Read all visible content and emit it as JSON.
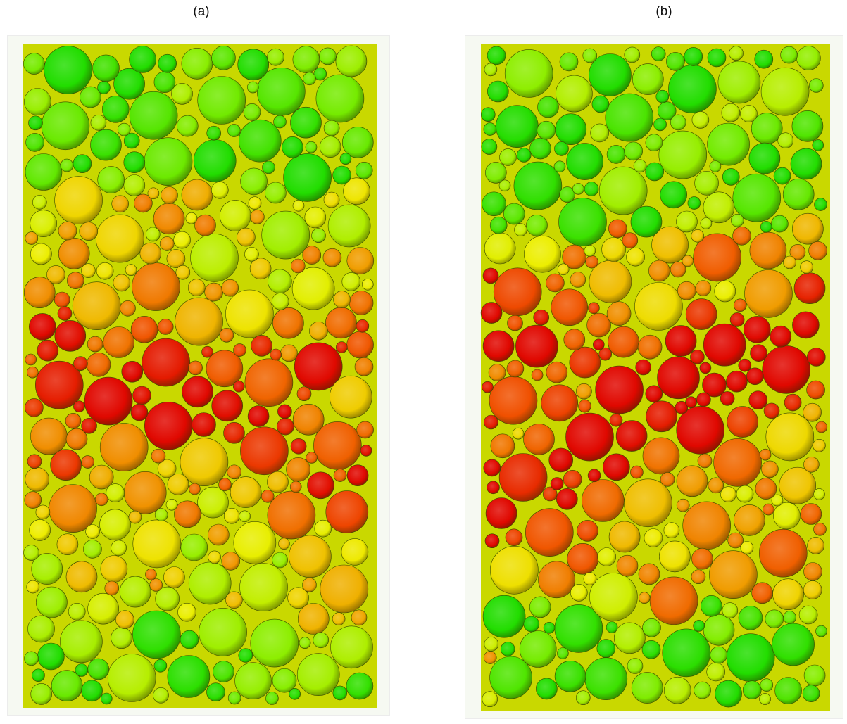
{
  "figure": {
    "panels": [
      {
        "label": "(a)",
        "description_colors": {
          "band_green": "#22dd00",
          "band_yellow": "#e8e800",
          "band_orange": "#f08a00",
          "band_red": "#e81000"
        },
        "seed": 11,
        "layout": "shear-band-single"
      },
      {
        "label": "(b)",
        "seed": 29,
        "layout": "shear-band-double"
      }
    ],
    "colors": {
      "green": "#22dd00",
      "lime": "#88ee00",
      "yellow": "#eeee00",
      "orange": "#f09000",
      "deep-orange": "#f05000",
      "red": "#e00800",
      "background": "#ffffff"
    }
  }
}
